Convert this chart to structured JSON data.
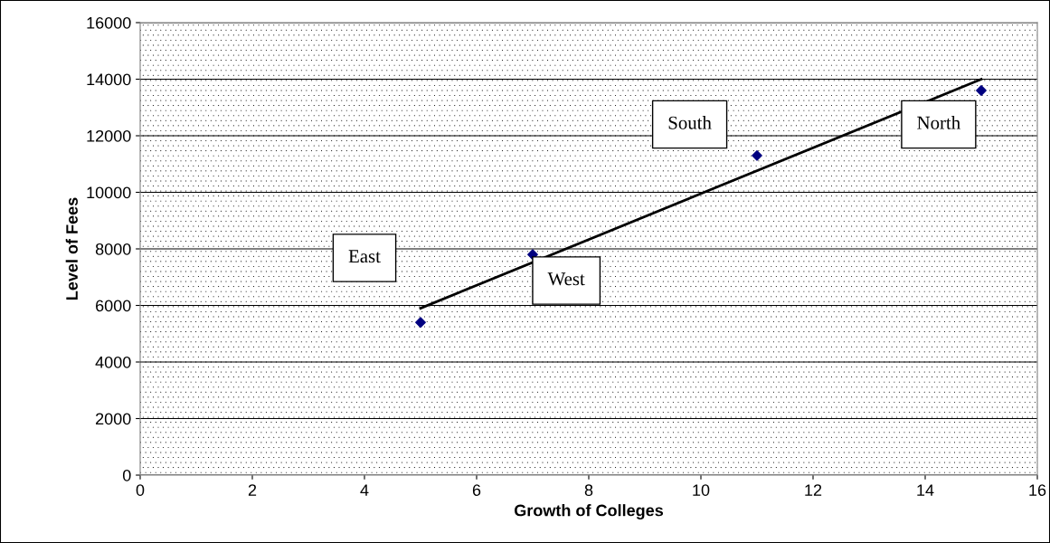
{
  "chart_data": {
    "type": "scatter",
    "xlabel": "Growth of Colleges",
    "ylabel": "Level of Fees",
    "series": [
      {
        "color": "#000080",
        "x": [
          5,
          7,
          11,
          15
        ],
        "values": [
          5400,
          7800,
          11300,
          13600
        ],
        "marker": "diamond"
      },
      {
        "type": "line",
        "color": "#000000",
        "x": [
          5,
          15
        ],
        "values": [
          5900,
          14000
        ],
        "marker": "none",
        "line_style": "solid"
      }
    ],
    "annotations": [
      "East",
      "West",
      "South",
      "North"
    ],
    "xlim": [
      0,
      16
    ],
    "xticks": [
      0,
      2,
      4,
      6,
      8,
      10,
      12,
      14,
      16
    ],
    "ylim": [
      0,
      16000
    ],
    "yticks": [
      0,
      2000,
      4000,
      6000,
      8000,
      10000,
      12000,
      14000,
      16000
    ],
    "grid": "y",
    "legend": false
  }
}
